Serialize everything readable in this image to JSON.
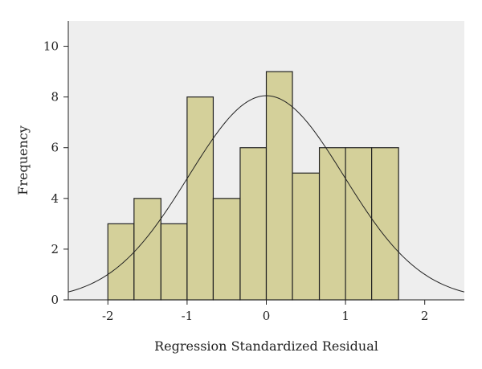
{
  "chart_data": {
    "type": "bar",
    "title": "",
    "xlabel": "Regression Standardized Residual",
    "ylabel": "Frequency",
    "xlim": [
      -2.5,
      2.5
    ],
    "ylim": [
      0,
      11
    ],
    "xticks": [
      -2,
      -1,
      0,
      1,
      2
    ],
    "xtick_labels": [
      "-2",
      "-1",
      "0",
      "1",
      "2"
    ],
    "yticks": [
      0,
      2,
      4,
      6,
      8,
      10
    ],
    "ytick_labels": [
      "0",
      "2",
      "4",
      "6",
      "8",
      "10"
    ],
    "grid": false,
    "bins": [
      {
        "start": -2.0,
        "end": -1.67,
        "count": 3
      },
      {
        "start": -1.67,
        "end": -1.33,
        "count": 4
      },
      {
        "start": -1.33,
        "end": -1.0,
        "count": 3
      },
      {
        "start": -1.0,
        "end": -0.67,
        "count": 8
      },
      {
        "start": -0.67,
        "end": -0.33,
        "count": 4
      },
      {
        "start": -0.33,
        "end": 0.0,
        "count": 6
      },
      {
        "start": 0.0,
        "end": 0.33,
        "count": 9
      },
      {
        "start": 0.33,
        "end": 0.67,
        "count": 5
      },
      {
        "start": 0.67,
        "end": 1.0,
        "count": 6
      },
      {
        "start": 1.0,
        "end": 1.33,
        "count": 6
      },
      {
        "start": 1.33,
        "end": 1.67,
        "count": 6
      }
    ],
    "normal_curve": {
      "mean": 0.0,
      "sd": 0.98,
      "peak": 8.05
    },
    "colors": {
      "bar_fill": "#d4d09a",
      "bar_stroke": "#222222",
      "plot_background": "#eeeeee",
      "curve": "#222222"
    }
  }
}
